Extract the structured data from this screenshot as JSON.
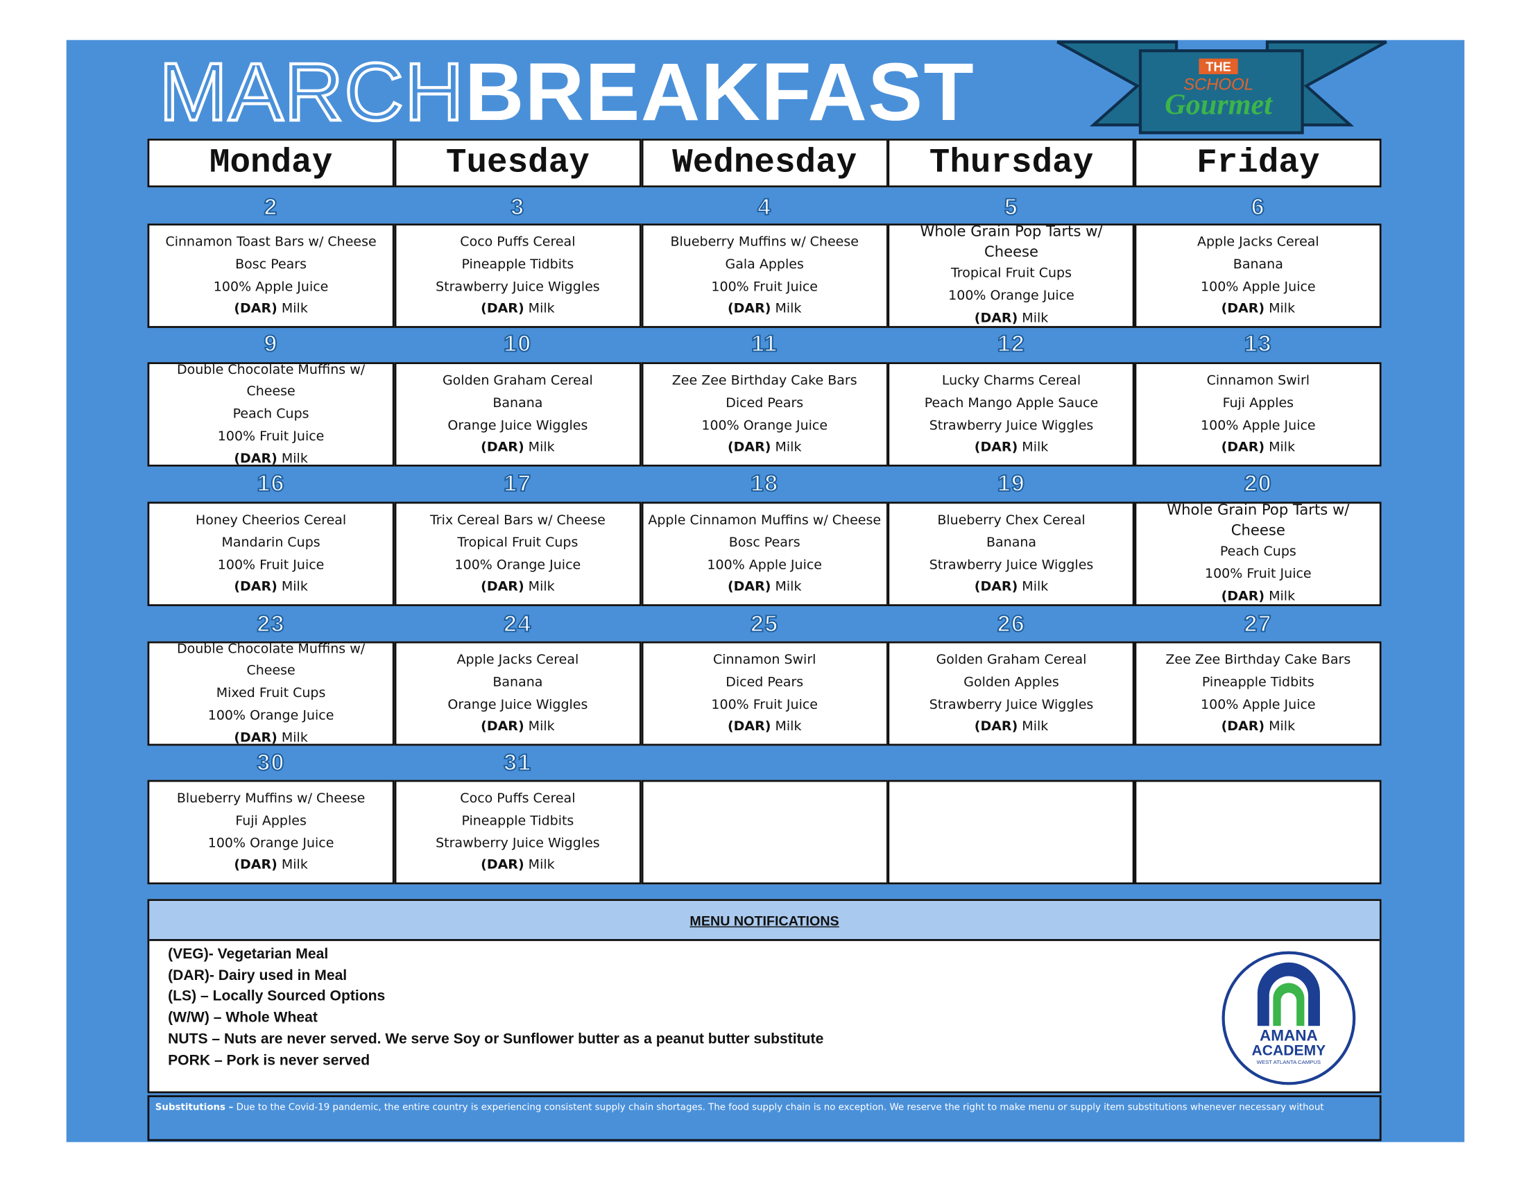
{
  "header": {
    "title_light": "MARCH",
    "title_bold": "BREAKFAST",
    "logo": {
      "line1": "THE",
      "line2": "SCHOOL",
      "line3": "Gourmet"
    }
  },
  "calendar": {
    "days": [
      "Monday",
      "Tuesday",
      "Wednesday",
      "Thursday",
      "Friday"
    ],
    "weeks": [
      [
        {
          "date": 2,
          "items": [
            "Cinnamon Toast Bars w/ Cheese",
            "Bosc Pears",
            "100% Apple Juice"
          ],
          "milk": {
            "tag": "(DAR)",
            "text": "Milk"
          }
        },
        {
          "date": 3,
          "items": [
            "Coco Puffs Cereal",
            "Pineapple Tidbits",
            "Strawberry Juice Wiggles"
          ],
          "milk": {
            "tag": "(DAR)",
            "text": "Milk"
          }
        },
        {
          "date": 4,
          "items": [
            "Blueberry Muffins w/ Cheese",
            "Gala Apples",
            "100% Fruit Juice"
          ],
          "milk": {
            "tag": "(DAR)",
            "text": "Milk"
          }
        },
        {
          "date": 5,
          "items": [
            "Whole Grain Pop Tarts w/ Cheese",
            "Tropical Fruit Cups",
            "100% Orange Juice"
          ],
          "milk": {
            "tag": "(DAR)",
            "text": "Milk"
          }
        },
        {
          "date": 6,
          "items": [
            "Apple Jacks Cereal",
            "Banana",
            "100% Apple Juice"
          ],
          "milk": {
            "tag": "(DAR)",
            "text": "Milk"
          }
        }
      ],
      [
        {
          "date": 9,
          "items": [
            "Double Chocolate Muffins w/ Cheese",
            "Peach Cups",
            "100% Fruit Juice"
          ],
          "milk": {
            "tag": "(DAR)",
            "text": "Milk"
          }
        },
        {
          "date": 10,
          "items": [
            "Golden Graham Cereal",
            "Banana",
            "Orange Juice Wiggles"
          ],
          "milk": {
            "tag": "(DAR)",
            "text": "Milk"
          }
        },
        {
          "date": 11,
          "items": [
            "Zee Zee Birthday Cake Bars",
            "Diced Pears",
            "100% Orange Juice"
          ],
          "milk": {
            "tag": "(DAR)",
            "text": "Milk"
          }
        },
        {
          "date": 12,
          "items": [
            "Lucky Charms Cereal",
            "Peach Mango Apple Sauce",
            "Strawberry Juice Wiggles"
          ],
          "milk": {
            "tag": "(DAR)",
            "text": "Milk"
          }
        },
        {
          "date": 13,
          "items": [
            "Cinnamon Swirl",
            "Fuji Apples",
            "100% Apple Juice"
          ],
          "milk": {
            "tag": "(DAR)",
            "text": "Milk"
          }
        }
      ],
      [
        {
          "date": 16,
          "items": [
            "Honey Cheerios Cereal",
            "Mandarin Cups",
            "100% Fruit Juice"
          ],
          "milk": {
            "tag": "(DAR)",
            "text": "Milk"
          }
        },
        {
          "date": 17,
          "items": [
            "Trix Cereal Bars w/ Cheese",
            "Tropical Fruit Cups",
            "100% Orange Juice"
          ],
          "milk": {
            "tag": "(DAR)",
            "text": "Milk"
          }
        },
        {
          "date": 18,
          "items": [
            "Apple Cinnamon Muffins w/ Cheese",
            "Bosc Pears",
            "100% Apple Juice"
          ],
          "milk": {
            "tag": "(DAR)",
            "text": "Milk"
          }
        },
        {
          "date": 19,
          "items": [
            "Blueberry Chex Cereal",
            "Banana",
            "Strawberry Juice Wiggles"
          ],
          "milk": {
            "tag": "(DAR)",
            "text": "Milk"
          }
        },
        {
          "date": 20,
          "items": [
            "Whole Grain Pop Tarts w/ Cheese",
            "Peach Cups",
            "100% Fruit Juice"
          ],
          "milk": {
            "tag": "(DAR)",
            "text": "Milk"
          }
        }
      ],
      [
        {
          "date": 23,
          "items": [
            "Double Chocolate Muffins w/ Cheese",
            "Mixed Fruit Cups",
            "100% Orange Juice"
          ],
          "milk": {
            "tag": "(DAR)",
            "text": "Milk"
          }
        },
        {
          "date": 24,
          "items": [
            "Apple Jacks Cereal",
            "Banana",
            "Orange Juice Wiggles"
          ],
          "milk": {
            "tag": "(DAR)",
            "text": "Milk"
          }
        },
        {
          "date": 25,
          "items": [
            "Cinnamon Swirl",
            "Diced Pears",
            "100% Fruit Juice"
          ],
          "milk": {
            "tag": "(DAR)",
            "text": "Milk"
          }
        },
        {
          "date": 26,
          "items": [
            "Golden Graham Cereal",
            "Golden Apples",
            "Strawberry Juice Wiggles"
          ],
          "milk": {
            "tag": "(DAR)",
            "text": "Milk"
          }
        },
        {
          "date": 27,
          "items": [
            "Zee Zee Birthday Cake Bars",
            "Pineapple Tidbits",
            "100% Apple Juice"
          ],
          "milk": {
            "tag": "(DAR)",
            "text": "Milk"
          }
        }
      ],
      [
        {
          "date": 30,
          "items": [
            "Blueberry Muffins w/ Cheese",
            "Fuji Apples",
            "100% Orange Juice"
          ],
          "milk": {
            "tag": "(DAR)",
            "text": "Milk"
          }
        },
        {
          "date": 31,
          "items": [
            "Coco Puffs Cereal",
            "Pineapple Tidbits",
            "Strawberry Juice Wiggles"
          ],
          "milk": {
            "tag": "(DAR)",
            "text": "Milk"
          }
        }
      ]
    ]
  },
  "notifications": {
    "title": "MENU NOTIFICATIONS",
    "items": [
      "(VEG)- Vegetarian Meal",
      "(DAR)- Dairy used in Meal",
      "(LS) – Locally Sourced Options",
      "(W/W) – Whole Wheat",
      "NUTS – Nuts are never served. We serve Soy or Sunflower butter as a peanut butter substitute",
      "PORK – Pork is never served"
    ],
    "logo": {
      "line1": "AMANA",
      "line2": "ACADEMY",
      "line3": "WEST ATLANTA CAMPUS"
    }
  },
  "footer": {
    "label": "Substitutions –",
    "text": "Due to the Covid-19 pandemic, the entire country is experiencing consistent supply chain shortages. The food supply chain is no exception. We reserve the right to make  menu or supply item substitutions whenever necessary without"
  }
}
